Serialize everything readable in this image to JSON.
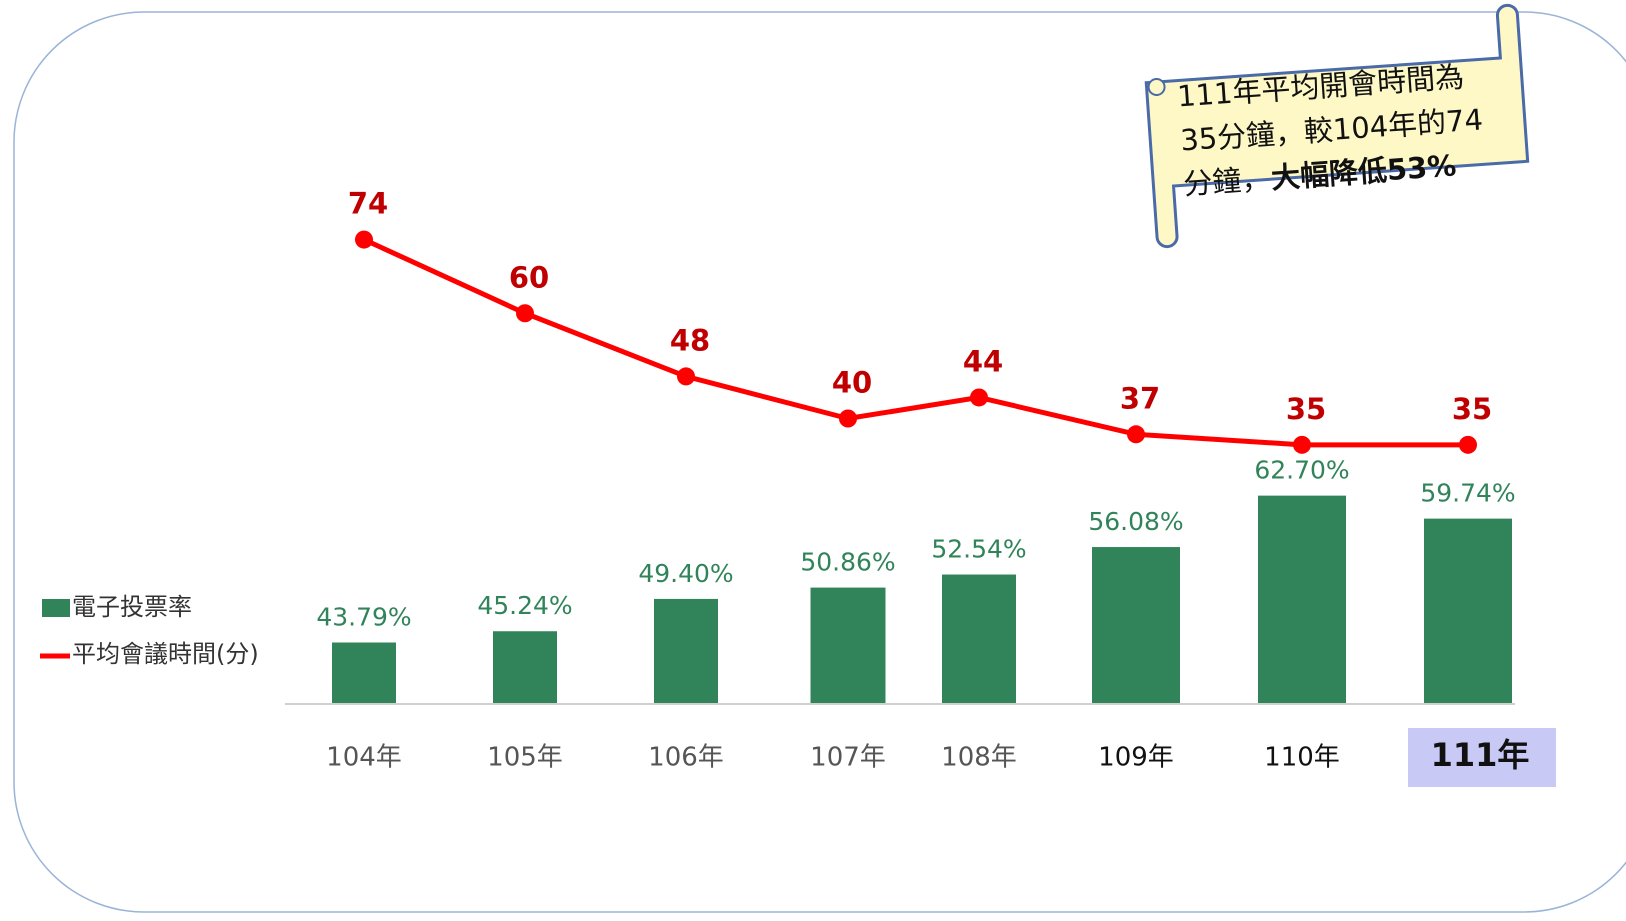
{
  "chart_data": {
    "type": "bar-line",
    "categories": [
      "104年",
      "105年",
      "106年",
      "107年",
      "108年",
      "109年",
      "110年",
      "111年"
    ],
    "series": [
      {
        "name": "電子投票率",
        "type": "bar",
        "color": "#31845a",
        "values": [
          43.79,
          45.24,
          49.4,
          50.86,
          52.54,
          56.08,
          62.7,
          59.74
        ],
        "value_labels": [
          "43.79%",
          "45.24%",
          "49.40%",
          "50.86%",
          "52.54%",
          "56.08%",
          "62.70%",
          "59.74%"
        ]
      },
      {
        "name": "平均會議時間(分)",
        "type": "line",
        "color": "#ff0000",
        "axis": "y2",
        "values": [
          74,
          60,
          48,
          40,
          44,
          37,
          35,
          35
        ]
      }
    ],
    "ylim": [
      36,
      66
    ],
    "y2lim": [
      0,
      80
    ],
    "annotation": {
      "lines": [
        "111年平均開會時間為",
        "35分鐘，較104年的74",
        "分鐘，"
      ],
      "bold": "大幅降低53%"
    }
  }
}
